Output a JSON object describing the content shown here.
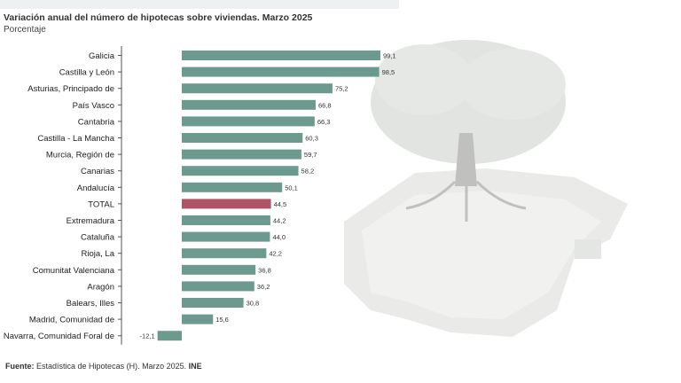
{
  "header": {
    "title": "Variación anual del número de hipotecas sobre viviendas. Marzo 2025",
    "subtitle": "Porcentaje"
  },
  "footer": {
    "source_label": "Fuente:",
    "source_text": "Estadística de Hipotecas (H). Marzo 2025.",
    "source_org": "INE"
  },
  "colors": {
    "bar": "#6d9a8f",
    "total_bar": "#ad5566",
    "axis": "#555555"
  },
  "chart_data": {
    "type": "bar",
    "orientation": "horizontal",
    "title": "Variación anual del número de hipotecas sobre viviendas. Marzo 2025",
    "ylabel": "Porcentaje",
    "categories": [
      "Galicia",
      "Castilla y León",
      "Asturias, Principado de",
      "País Vasco",
      "Cantabria",
      "Castilla - La Mancha",
      "Murcia, Región de",
      "Canarias",
      "Andalucía",
      "TOTAL",
      "Extremadura",
      "Cataluña",
      "Rioja, La",
      "Comunitat Valenciana",
      "Aragón",
      "Balears, Illes",
      "Madrid, Comunidad de",
      "Navarra, Comunidad Foral de"
    ],
    "values": [
      99.1,
      98.5,
      75.2,
      66.8,
      66.3,
      60.3,
      59.7,
      58.2,
      50.1,
      44.5,
      44.2,
      44.0,
      42.2,
      36.8,
      36.2,
      30.8,
      15.6,
      -12.1
    ],
    "value_labels": [
      "99,1",
      "98,5",
      "75,2",
      "66,8",
      "66,3",
      "60,3",
      "59,7",
      "58,2",
      "50,1",
      "44,5",
      "44,2",
      "44,0",
      "42,2",
      "36,8",
      "36,2",
      "30,8",
      "15,6",
      "-12,1"
    ],
    "highlight": "TOTAL",
    "xlim": [
      -12.1,
      99.1
    ],
    "grid": false,
    "legend": "none"
  }
}
